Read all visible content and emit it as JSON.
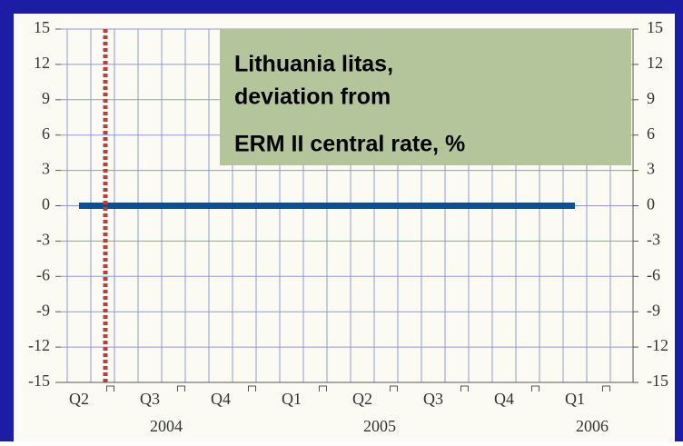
{
  "chart_data": {
    "type": "line",
    "title": [
      "Lithuania litas,",
      "deviation from",
      "ERM II central rate, %"
    ],
    "categories": [
      "Q2",
      "Q3",
      "Q4",
      "Q1",
      "Q2",
      "Q3",
      "Q4",
      "Q1"
    ],
    "years": [
      "2004",
      "2005",
      "2006"
    ],
    "series": [
      {
        "color": "#0b4f9c",
        "values": [
          0,
          0,
          0,
          0,
          0,
          0,
          0,
          0
        ]
      }
    ],
    "ylim": [
      -15,
      15
    ],
    "yticks": [
      -15,
      -12,
      -9,
      -6,
      -3,
      0,
      3,
      6,
      9,
      12,
      15
    ],
    "grid": true
  }
}
